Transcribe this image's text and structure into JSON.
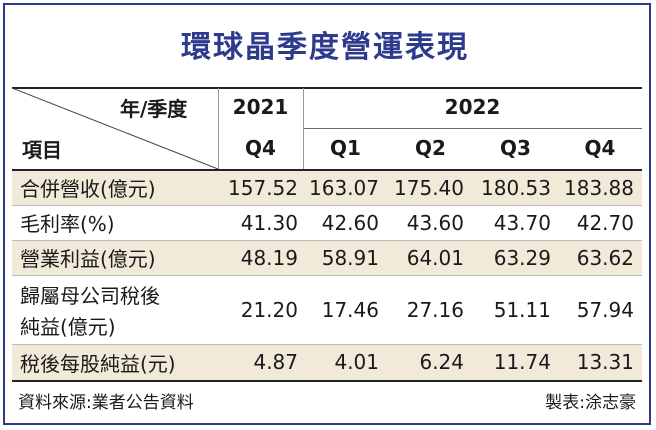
{
  "title": "環球晶季度營運表現",
  "corner": {
    "top_label": "年/季度",
    "bottom_label": "項目"
  },
  "years": [
    "2021",
    "2022"
  ],
  "quarters": [
    "Q4",
    "Q1",
    "Q2",
    "Q3",
    "Q4"
  ],
  "rows": [
    {
      "label": "合併營收(億元)",
      "values": [
        "157.52",
        "163.07",
        "175.40",
        "180.53",
        "183.88"
      ],
      "shaded": true
    },
    {
      "label": "毛利率(%)",
      "values": [
        "41.30",
        "42.60",
        "43.60",
        "43.70",
        "42.70"
      ],
      "shaded": false
    },
    {
      "label": "營業利益(億元)",
      "values": [
        "48.19",
        "58.91",
        "64.01",
        "63.29",
        "63.62"
      ],
      "shaded": true
    },
    {
      "label_line1": "歸屬母公司稅後",
      "label_line2": "純益(億元)",
      "values": [
        "21.20",
        "17.46",
        "27.16",
        "51.11",
        "57.94"
      ],
      "shaded": false
    },
    {
      "label": "稅後每股純益(元)",
      "values": [
        "4.87",
        "4.01",
        "6.24",
        "11.74",
        "13.31"
      ],
      "shaded": true
    }
  ],
  "footer": {
    "source": "資料來源:業者公告資料",
    "credit": "製表:涂志豪"
  },
  "colors": {
    "title": "#2e3a8c",
    "shade": "#f2ead8"
  }
}
